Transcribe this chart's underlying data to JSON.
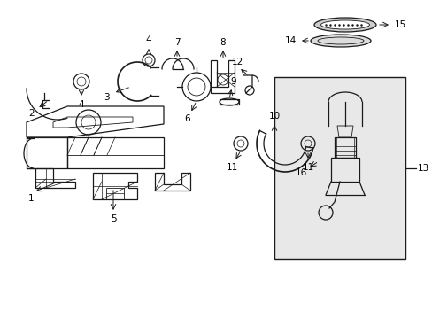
{
  "background_color": "#ffffff",
  "line_color": "#1a1a1a",
  "label_color": "#000000",
  "fig_width": 4.89,
  "fig_height": 3.6,
  "dpi": 100,
  "box_fill": "#e8e8e8"
}
